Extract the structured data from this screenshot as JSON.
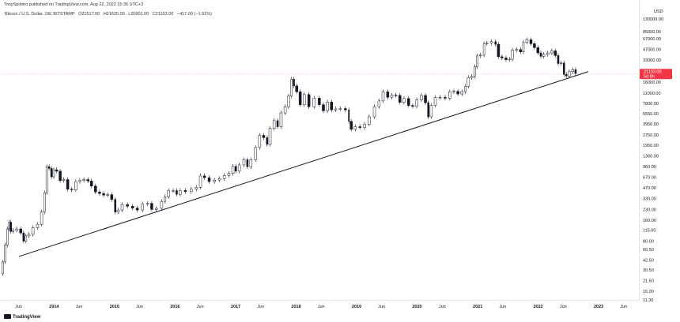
{
  "header": {
    "published": "TonySpilotro published on TradingView.com, Aug 22, 2022 15:36 UTC+3"
  },
  "legend": {
    "symbol": "Bitcoin / U.S. Dollar, 1W, BITSTAMP",
    "open": "O21517.00",
    "high": "H21620.00",
    "low": "L20901.00",
    "close": "C21103.00",
    "change": "−417.00 (−1.91%)"
  },
  "price_axis": {
    "currency": "USD",
    "current_price": "21103.00",
    "countdown": "5d 8h",
    "labels": [
      "130000.00",
      "85000.00",
      "67000.00",
      "47000.00",
      "33000.00",
      "16000.00",
      "11000.00",
      "7800.00",
      "5550.00",
      "3950.00",
      "2750.00",
      "1950.00",
      "1360.00",
      "960.00",
      "670.00",
      "470.00",
      "330.00",
      "230.00",
      "160.00",
      "115.00",
      "80.00",
      "60.50",
      "42.50",
      "30.50",
      "21.50",
      "15.00",
      "11.30"
    ]
  },
  "time_axis": [
    {
      "label": "Jun",
      "bold": false
    },
    {
      "label": "2014",
      "bold": true
    },
    {
      "label": "Jun",
      "bold": false
    },
    {
      "label": "2015",
      "bold": true
    },
    {
      "label": "Jun",
      "bold": false
    },
    {
      "label": "2016",
      "bold": true
    },
    {
      "label": "Jun",
      "bold": false
    },
    {
      "label": "2017",
      "bold": true
    },
    {
      "label": "Jun",
      "bold": false
    },
    {
      "label": "2018",
      "bold": true
    },
    {
      "label": "Jun",
      "bold": false
    },
    {
      "label": "2019",
      "bold": true
    },
    {
      "label": "Jun",
      "bold": false
    },
    {
      "label": "2020",
      "bold": true
    },
    {
      "label": "Jun",
      "bold": false
    },
    {
      "label": "2021",
      "bold": true
    },
    {
      "label": "Jun",
      "bold": false
    },
    {
      "label": "2022",
      "bold": true
    },
    {
      "label": "Jun",
      "bold": false
    },
    {
      "label": "2023",
      "bold": true
    },
    {
      "label": "Jun",
      "bold": false
    }
  ],
  "branding": "TradingView",
  "colors": {
    "candle": "#131722",
    "trendline": "#131722",
    "price_tag": "#f23645",
    "price_line": "#f23645"
  },
  "chart_data": {
    "type": "candlestick",
    "scale": "log",
    "timeframe": "1W",
    "ylim": [
      11.3,
      130000
    ],
    "x_range": [
      "2013-02-18",
      "2023-09-01"
    ],
    "series": [
      {
        "name": "Bitcoin / U.S. Dollar",
        "points": [
          [
            "2013-02-18",
            27
          ],
          [
            "2013-03-04",
            40
          ],
          [
            "2013-03-18",
            70
          ],
          [
            "2013-04-01",
            120
          ],
          [
            "2013-04-08",
            150
          ],
          [
            "2013-04-22",
            110
          ],
          [
            "2013-05-06",
            115
          ],
          [
            "2013-06-03",
            120
          ],
          [
            "2013-06-24",
            105
          ],
          [
            "2013-07-08",
            80
          ],
          [
            "2013-07-22",
            95
          ],
          [
            "2013-08-12",
            100
          ],
          [
            "2013-09-09",
            125
          ],
          [
            "2013-10-07",
            140
          ],
          [
            "2013-10-28",
            210
          ],
          [
            "2013-11-11",
            400
          ],
          [
            "2013-11-25",
            950
          ],
          [
            "2013-12-09",
            900
          ],
          [
            "2013-12-23",
            680
          ],
          [
            "2014-01-06",
            860
          ],
          [
            "2014-01-27",
            820
          ],
          [
            "2014-02-17",
            600
          ],
          [
            "2014-03-10",
            620
          ],
          [
            "2014-04-07",
            450
          ],
          [
            "2014-04-28",
            440
          ],
          [
            "2014-05-26",
            580
          ],
          [
            "2014-06-16",
            600
          ],
          [
            "2014-07-14",
            620
          ],
          [
            "2014-08-04",
            590
          ],
          [
            "2014-08-25",
            500
          ],
          [
            "2014-09-22",
            410
          ],
          [
            "2014-10-13",
            390
          ],
          [
            "2014-11-10",
            370
          ],
          [
            "2014-12-01",
            375
          ],
          [
            "2014-12-29",
            320
          ],
          [
            "2015-01-12",
            210
          ],
          [
            "2015-02-02",
            225
          ],
          [
            "2015-03-02",
            270
          ],
          [
            "2015-04-06",
            255
          ],
          [
            "2015-05-04",
            240
          ],
          [
            "2015-06-01",
            225
          ],
          [
            "2015-07-06",
            275
          ],
          [
            "2015-08-03",
            280
          ],
          [
            "2015-08-24",
            230
          ],
          [
            "2015-09-28",
            238
          ],
          [
            "2015-10-26",
            300
          ],
          [
            "2015-11-09",
            350
          ],
          [
            "2015-12-07",
            430
          ],
          [
            "2016-01-04",
            430
          ],
          [
            "2016-01-18",
            380
          ],
          [
            "2016-02-15",
            430
          ],
          [
            "2016-03-21",
            415
          ],
          [
            "2016-04-25",
            450
          ],
          [
            "2016-05-23",
            480
          ],
          [
            "2016-06-13",
            700
          ],
          [
            "2016-07-11",
            660
          ],
          [
            "2016-08-08",
            580
          ],
          [
            "2016-09-12",
            610
          ],
          [
            "2016-10-10",
            640
          ],
          [
            "2016-11-07",
            710
          ],
          [
            "2016-12-05",
            760
          ],
          [
            "2016-12-26",
            960
          ],
          [
            "2017-01-09",
            820
          ],
          [
            "2017-02-06",
            1010
          ],
          [
            "2017-03-06",
            1200
          ],
          [
            "2017-03-20",
            950
          ],
          [
            "2017-04-17",
            1200
          ],
          [
            "2017-05-15",
            1800
          ],
          [
            "2017-06-05",
            2700
          ],
          [
            "2017-07-03",
            2500
          ],
          [
            "2017-07-17",
            2000
          ],
          [
            "2017-08-07",
            3400
          ],
          [
            "2017-09-04",
            4400
          ],
          [
            "2017-09-18",
            3600
          ],
          [
            "2017-10-16",
            5700
          ],
          [
            "2017-11-06",
            7000
          ],
          [
            "2017-11-27",
            10000
          ],
          [
            "2017-12-11",
            17500
          ],
          [
            "2017-12-25",
            14000
          ],
          [
            "2018-01-15",
            11500
          ],
          [
            "2018-02-05",
            7500
          ],
          [
            "2018-03-05",
            10500
          ],
          [
            "2018-04-02",
            7000
          ],
          [
            "2018-05-07",
            9300
          ],
          [
            "2018-06-04",
            7500
          ],
          [
            "2018-06-25",
            6100
          ],
          [
            "2018-07-23",
            8200
          ],
          [
            "2018-08-13",
            6300
          ],
          [
            "2018-09-10",
            6500
          ],
          [
            "2018-10-08",
            6600
          ],
          [
            "2018-11-12",
            6300
          ],
          [
            "2018-11-19",
            4300
          ],
          [
            "2018-12-10",
            3300
          ],
          [
            "2019-01-07",
            3600
          ],
          [
            "2019-02-04",
            3500
          ],
          [
            "2019-03-04",
            3900
          ],
          [
            "2019-04-01",
            5000
          ],
          [
            "2019-05-06",
            7000
          ],
          [
            "2019-05-27",
            8500
          ],
          [
            "2019-06-24",
            11500
          ],
          [
            "2019-07-22",
            9600
          ],
          [
            "2019-08-12",
            10300
          ],
          [
            "2019-09-09",
            10200
          ],
          [
            "2019-09-30",
            8100
          ],
          [
            "2019-10-28",
            9200
          ],
          [
            "2019-11-25",
            7300
          ],
          [
            "2019-12-16",
            7100
          ],
          [
            "2020-01-13",
            8800
          ],
          [
            "2020-02-10",
            10200
          ],
          [
            "2020-03-02",
            8000
          ],
          [
            "2020-03-16",
            5000
          ],
          [
            "2020-04-06",
            7300
          ],
          [
            "2020-05-04",
            9500
          ],
          [
            "2020-06-01",
            9600
          ],
          [
            "2020-07-06",
            9300
          ],
          [
            "2020-07-27",
            11500
          ],
          [
            "2020-08-24",
            11700
          ],
          [
            "2020-09-14",
            10700
          ],
          [
            "2020-10-12",
            11500
          ],
          [
            "2020-10-26",
            13800
          ],
          [
            "2020-11-16",
            18500
          ],
          [
            "2020-12-07",
            19200
          ],
          [
            "2020-12-21",
            26500
          ],
          [
            "2021-01-04",
            38000
          ],
          [
            "2021-02-01",
            39000
          ],
          [
            "2021-02-15",
            57000
          ],
          [
            "2021-03-08",
            58000
          ],
          [
            "2021-04-12",
            61000
          ],
          [
            "2021-04-26",
            56000
          ],
          [
            "2021-05-17",
            37000
          ],
          [
            "2021-06-07",
            35500
          ],
          [
            "2021-07-05",
            33500
          ],
          [
            "2021-07-19",
            34000
          ],
          [
            "2021-08-09",
            46000
          ],
          [
            "2021-09-06",
            47000
          ],
          [
            "2021-09-27",
            43500
          ],
          [
            "2021-10-11",
            60000
          ],
          [
            "2021-11-08",
            65000
          ],
          [
            "2021-11-29",
            57000
          ],
          [
            "2021-12-20",
            50000
          ],
          [
            "2022-01-10",
            42000
          ],
          [
            "2022-01-24",
            37500
          ],
          [
            "2022-02-14",
            40000
          ],
          [
            "2022-03-14",
            42000
          ],
          [
            "2022-04-04",
            45000
          ],
          [
            "2022-04-25",
            38500
          ],
          [
            "2022-05-09",
            29500
          ],
          [
            "2022-05-30",
            30000
          ],
          [
            "2022-06-13",
            20500
          ],
          [
            "2022-06-27",
            19500
          ],
          [
            "2022-07-18",
            22500
          ],
          [
            "2022-08-08",
            24000
          ],
          [
            "2022-08-22",
            21103
          ]
        ]
      }
    ],
    "trendline": {
      "from": [
        "2013-06-03",
        48
      ],
      "to": [
        "2022-10-31",
        22500
      ]
    },
    "last_price": 21103.0
  }
}
